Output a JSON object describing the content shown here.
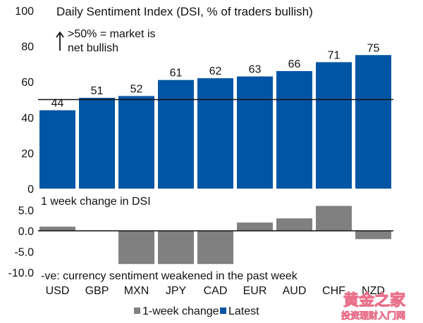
{
  "chart_data": [
    {
      "type": "bar",
      "title": "Daily Sentiment Index (DSI, % of traders bullish)",
      "annotation": {
        "arrow": "up-arrow",
        "line1": ">50% = market is",
        "line2": "net bullish"
      },
      "categories": [
        "USD",
        "GBP",
        "MXN",
        "JPY",
        "CAD",
        "EUR",
        "AUD",
        "CHF",
        "NZD"
      ],
      "series": [
        {
          "name": "Latest",
          "color": "#0055A4",
          "values": [
            44,
            51,
            52,
            61,
            62,
            63,
            66,
            71,
            75
          ]
        }
      ],
      "data_labels": [
        "44",
        "51",
        "52",
        "61",
        "62",
        "63",
        "66",
        "71",
        "75"
      ],
      "reference_line": 50,
      "ylim": [
        0,
        100
      ],
      "yticks": [
        0,
        20,
        40,
        60,
        80,
        100
      ],
      "ytick_labels": [
        "0",
        "20",
        "40",
        "60",
        "80",
        "100"
      ],
      "xlabel": "",
      "ylabel": "",
      "grid": false
    },
    {
      "type": "bar",
      "title": "1 week change in DSI",
      "annotation": "-ve: currency sentiment weakened in the past week",
      "categories": [
        "USD",
        "GBP",
        "MXN",
        "JPY",
        "CAD",
        "EUR",
        "AUD",
        "CHF",
        "NZD"
      ],
      "series": [
        {
          "name": "1-week change",
          "color": "#808080",
          "values": [
            1,
            0,
            -8,
            -8,
            -8,
            2,
            3,
            6,
            -2
          ]
        }
      ],
      "ylim": [
        -10,
        5
      ],
      "yticks": [
        5,
        0,
        -5,
        -10
      ],
      "ytick_labels": [
        "5.0",
        "0.0",
        "-5.0",
        "-10.0"
      ],
      "xlabel": "",
      "ylabel": "",
      "grid": false
    }
  ],
  "legend": {
    "position": "bottom-center",
    "items": [
      {
        "label": "1-week change",
        "color": "#808080"
      },
      {
        "label": "Latest",
        "color": "#0055A4"
      }
    ]
  },
  "watermark": {
    "line1": "黄金之家",
    "line2": "投资理财入门网",
    "color": "#E8708A"
  }
}
